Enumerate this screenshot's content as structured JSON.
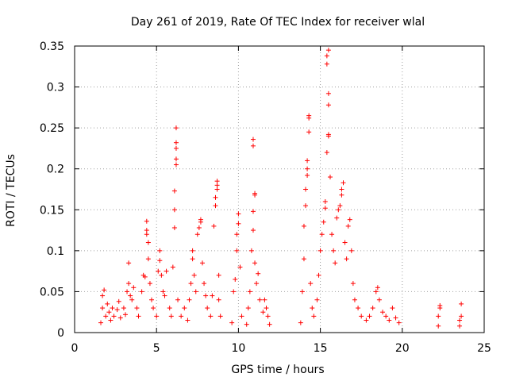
{
  "chart_data": {
    "type": "scatter",
    "title": "Day 261 of 2019, Rate Of TEC Index for receiver wlal",
    "xlabel": "GPS time / hours",
    "ylabel": "ROTI / TECUs",
    "xlim": [
      0,
      25
    ],
    "ylim": [
      0,
      0.35
    ],
    "grid": true,
    "marker": "+",
    "color": "#ff0000",
    "x_ticks": [
      "0",
      "5",
      "10",
      "15",
      "20",
      "25"
    ],
    "y_ticks": [
      "0",
      "0.05",
      "0.1",
      "0.15",
      "0.2",
      "0.25",
      "0.3",
      "0.35"
    ],
    "series": [
      {
        "name": "ROTI",
        "points": [
          [
            1.6,
            0.012
          ],
          [
            1.7,
            0.03
          ],
          [
            1.7,
            0.045
          ],
          [
            1.8,
            0.052
          ],
          [
            1.9,
            0.02
          ],
          [
            2.0,
            0.035
          ],
          [
            2.1,
            0.025
          ],
          [
            2.2,
            0.015
          ],
          [
            2.3,
            0.03
          ],
          [
            2.4,
            0.02
          ],
          [
            2.6,
            0.028
          ],
          [
            2.7,
            0.038
          ],
          [
            2.8,
            0.018
          ],
          [
            3.0,
            0.03
          ],
          [
            3.1,
            0.022
          ],
          [
            3.2,
            0.05
          ],
          [
            3.3,
            0.085
          ],
          [
            3.3,
            0.06
          ],
          [
            3.4,
            0.045
          ],
          [
            3.5,
            0.04
          ],
          [
            3.6,
            0.055
          ],
          [
            3.8,
            0.03
          ],
          [
            3.9,
            0.02
          ],
          [
            4.1,
            0.05
          ],
          [
            4.2,
            0.07
          ],
          [
            4.3,
            0.068
          ],
          [
            4.4,
            0.136
          ],
          [
            4.4,
            0.125
          ],
          [
            4.4,
            0.12
          ],
          [
            4.5,
            0.11
          ],
          [
            4.5,
            0.09
          ],
          [
            4.6,
            0.06
          ],
          [
            4.7,
            0.04
          ],
          [
            4.8,
            0.03
          ],
          [
            5.0,
            0.02
          ],
          [
            5.1,
            0.075
          ],
          [
            5.2,
            0.1
          ],
          [
            5.2,
            0.088
          ],
          [
            5.3,
            0.07
          ],
          [
            5.4,
            0.05
          ],
          [
            5.5,
            0.045
          ],
          [
            5.6,
            0.075
          ],
          [
            5.8,
            0.03
          ],
          [
            5.9,
            0.02
          ],
          [
            6.0,
            0.08
          ],
          [
            6.1,
            0.15
          ],
          [
            6.1,
            0.173
          ],
          [
            6.1,
            0.128
          ],
          [
            6.2,
            0.205
          ],
          [
            6.2,
            0.212
          ],
          [
            6.2,
            0.225
          ],
          [
            6.2,
            0.232
          ],
          [
            6.2,
            0.25
          ],
          [
            6.3,
            0.04
          ],
          [
            6.5,
            0.02
          ],
          [
            6.7,
            0.03
          ],
          [
            6.9,
            0.015
          ],
          [
            7.0,
            0.04
          ],
          [
            7.1,
            0.06
          ],
          [
            7.2,
            0.1
          ],
          [
            7.2,
            0.09
          ],
          [
            7.3,
            0.07
          ],
          [
            7.4,
            0.05
          ],
          [
            7.5,
            0.12
          ],
          [
            7.6,
            0.128
          ],
          [
            7.7,
            0.135
          ],
          [
            7.7,
            0.138
          ],
          [
            7.8,
            0.085
          ],
          [
            7.9,
            0.06
          ],
          [
            8.0,
            0.045
          ],
          [
            8.1,
            0.03
          ],
          [
            8.3,
            0.02
          ],
          [
            8.4,
            0.045
          ],
          [
            8.5,
            0.13
          ],
          [
            8.6,
            0.155
          ],
          [
            8.6,
            0.165
          ],
          [
            8.7,
            0.175
          ],
          [
            8.7,
            0.18
          ],
          [
            8.7,
            0.185
          ],
          [
            8.8,
            0.07
          ],
          [
            8.8,
            0.04
          ],
          [
            8.9,
            0.02
          ],
          [
            9.6,
            0.012
          ],
          [
            9.7,
            0.05
          ],
          [
            9.8,
            0.065
          ],
          [
            9.9,
            0.1
          ],
          [
            9.9,
            0.12
          ],
          [
            10.0,
            0.133
          ],
          [
            10.0,
            0.145
          ],
          [
            10.1,
            0.08
          ],
          [
            10.2,
            0.02
          ],
          [
            10.5,
            0.01
          ],
          [
            10.6,
            0.03
          ],
          [
            10.7,
            0.05
          ],
          [
            10.8,
            0.1
          ],
          [
            10.9,
            0.125
          ],
          [
            10.9,
            0.148
          ],
          [
            11.0,
            0.168
          ],
          [
            11.0,
            0.17
          ],
          [
            10.9,
            0.228
          ],
          [
            10.9,
            0.236
          ],
          [
            11.0,
            0.085
          ],
          [
            11.1,
            0.06
          ],
          [
            11.2,
            0.072
          ],
          [
            11.3,
            0.04
          ],
          [
            11.5,
            0.025
          ],
          [
            11.6,
            0.04
          ],
          [
            11.7,
            0.03
          ],
          [
            11.8,
            0.02
          ],
          [
            11.9,
            0.01
          ],
          [
            13.8,
            0.012
          ],
          [
            13.9,
            0.05
          ],
          [
            14.0,
            0.09
          ],
          [
            14.0,
            0.13
          ],
          [
            14.1,
            0.155
          ],
          [
            14.1,
            0.175
          ],
          [
            14.2,
            0.192
          ],
          [
            14.2,
            0.2
          ],
          [
            14.2,
            0.21
          ],
          [
            14.3,
            0.245
          ],
          [
            14.3,
            0.262
          ],
          [
            14.3,
            0.265
          ],
          [
            14.4,
            0.06
          ],
          [
            14.5,
            0.03
          ],
          [
            14.6,
            0.02
          ],
          [
            14.8,
            0.04
          ],
          [
            14.9,
            0.07
          ],
          [
            15.0,
            0.1
          ],
          [
            15.1,
            0.12
          ],
          [
            15.2,
            0.135
          ],
          [
            15.3,
            0.152
          ],
          [
            15.3,
            0.16
          ],
          [
            15.4,
            0.22
          ],
          [
            15.5,
            0.24
          ],
          [
            15.5,
            0.242
          ],
          [
            15.5,
            0.278
          ],
          [
            15.5,
            0.292
          ],
          [
            15.4,
            0.328
          ],
          [
            15.4,
            0.338
          ],
          [
            15.5,
            0.345
          ],
          [
            15.6,
            0.19
          ],
          [
            15.7,
            0.12
          ],
          [
            15.8,
            0.1
          ],
          [
            15.9,
            0.085
          ],
          [
            16.0,
            0.14
          ],
          [
            16.1,
            0.15
          ],
          [
            16.2,
            0.155
          ],
          [
            16.3,
            0.168
          ],
          [
            16.3,
            0.175
          ],
          [
            16.4,
            0.183
          ],
          [
            16.5,
            0.11
          ],
          [
            16.6,
            0.09
          ],
          [
            16.7,
            0.13
          ],
          [
            16.8,
            0.138
          ],
          [
            16.9,
            0.1
          ],
          [
            17.0,
            0.06
          ],
          [
            17.1,
            0.04
          ],
          [
            17.3,
            0.03
          ],
          [
            17.5,
            0.02
          ],
          [
            17.8,
            0.015
          ],
          [
            18.0,
            0.02
          ],
          [
            18.2,
            0.03
          ],
          [
            18.4,
            0.05
          ],
          [
            18.5,
            0.055
          ],
          [
            18.6,
            0.04
          ],
          [
            18.8,
            0.025
          ],
          [
            19.0,
            0.02
          ],
          [
            19.2,
            0.015
          ],
          [
            19.4,
            0.03
          ],
          [
            19.6,
            0.018
          ],
          [
            19.8,
            0.012
          ],
          [
            22.2,
            0.008
          ],
          [
            22.2,
            0.02
          ],
          [
            22.3,
            0.03
          ],
          [
            22.3,
            0.033
          ],
          [
            23.5,
            0.008
          ],
          [
            23.5,
            0.015
          ],
          [
            23.6,
            0.02
          ],
          [
            23.6,
            0.035
          ]
        ]
      }
    ]
  }
}
